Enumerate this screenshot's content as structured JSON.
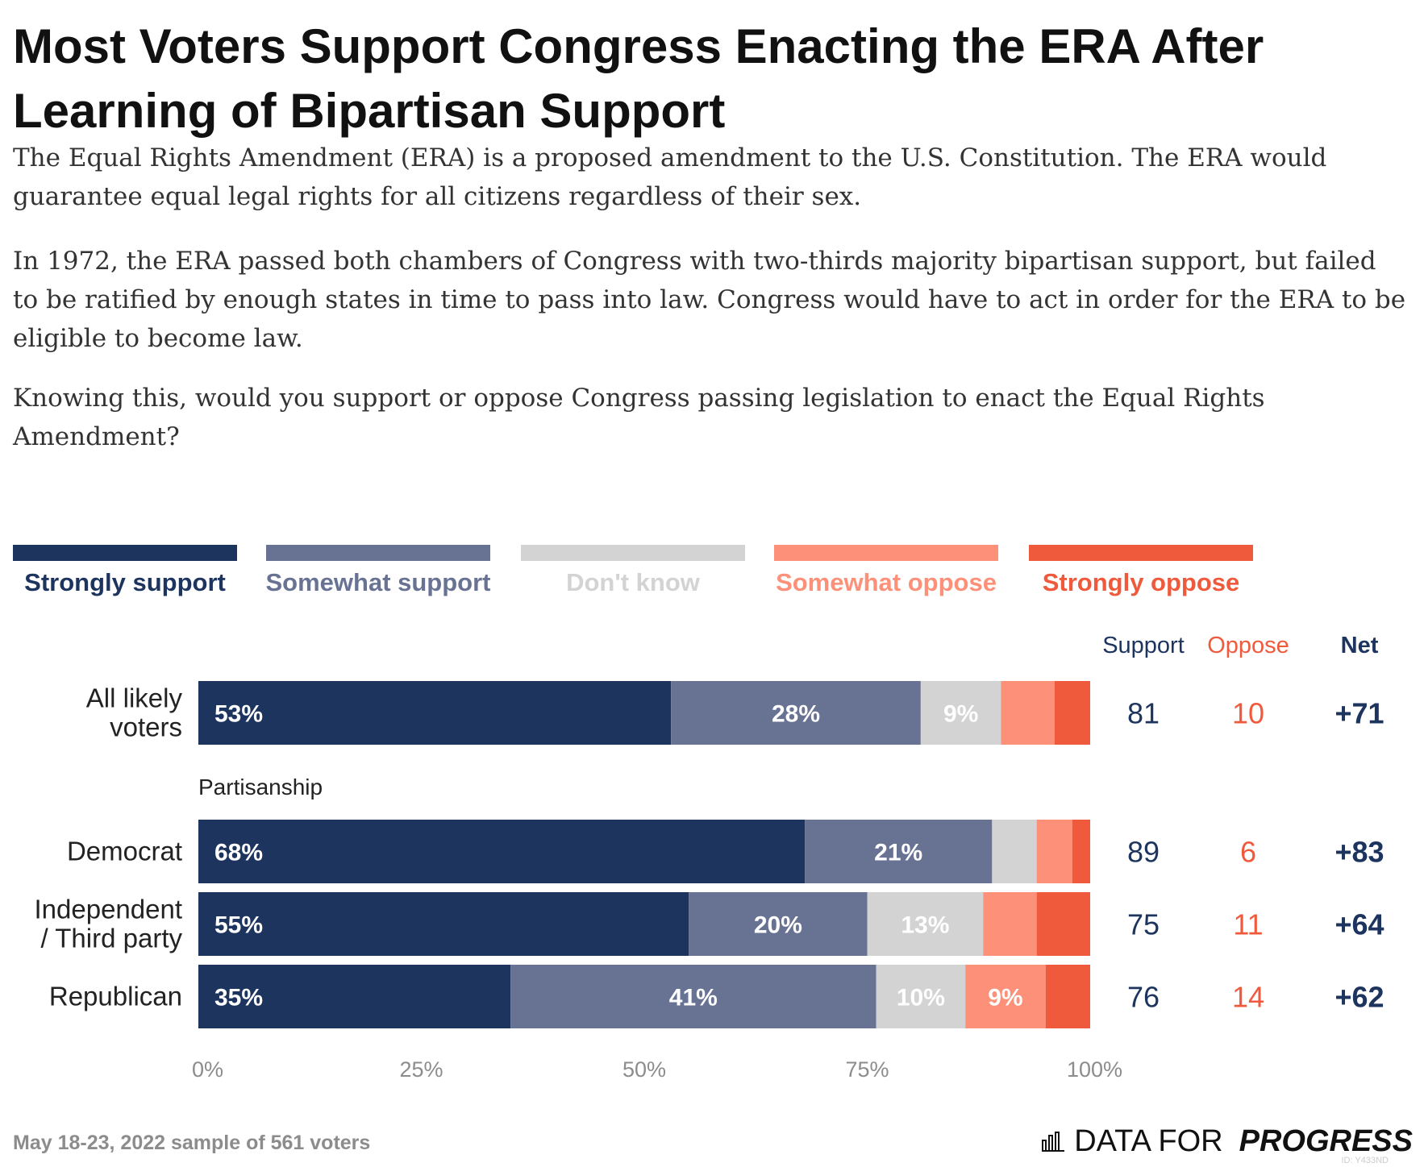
{
  "title": "Most Voters Support Congress Enacting the ERA After Learning of Bipartisan Support",
  "intro": [
    "The Equal Rights Amendment (ERA) is a proposed amendment to the U.S. Constitution. The ERA would guarantee equal legal rights for all citizens regardless of their sex.",
    "In 1972, the ERA passed both chambers of Congress with two-thirds majority bipartisan support, but failed to be ratified by enough states in time to pass into law. Congress would have to act in order for the ERA to be eligible to become law.",
    "Knowing this, would you support or oppose Congress passing legislation to enact the Equal Rights Amendment?"
  ],
  "colors": {
    "strongly_support": "#1d355e",
    "somewhat_support": "#687394",
    "dont_know": "#d3d3d3",
    "somewhat_oppose": "#fc9079",
    "strongly_oppose": "#f05a3c",
    "support_text": "#1d355e",
    "oppose_text": "#f05a3c"
  },
  "chart_data": {
    "type": "bar",
    "orientation": "horizontal",
    "stacked": true,
    "legend_position": "top",
    "xlim": [
      0,
      100
    ],
    "x_ticks": [
      "0%",
      "25%",
      "50%",
      "75%",
      "100%"
    ],
    "series": [
      {
        "name": "Strongly support",
        "values": [
          53,
          68,
          55,
          35
        ]
      },
      {
        "name": "Somewhat support",
        "values": [
          28,
          21,
          20,
          41
        ]
      },
      {
        "name": "Don't know",
        "values": [
          9,
          5,
          13,
          10
        ]
      },
      {
        "name": "Somewhat oppose",
        "values": [
          6,
          4,
          6,
          9
        ]
      },
      {
        "name": "Strongly oppose",
        "values": [
          4,
          2,
          6,
          5
        ]
      }
    ],
    "rows": [
      {
        "label": "All likely voters",
        "group": "",
        "labels": [
          "53%",
          "28%",
          "9%",
          "",
          ""
        ],
        "support": "81",
        "oppose": "10",
        "net": "+71"
      },
      {
        "label": "Democrat",
        "group": "Partisanship",
        "labels": [
          "68%",
          "21%",
          "",
          "",
          ""
        ],
        "support": "89",
        "oppose": "6",
        "net": "+83"
      },
      {
        "label": "Independent / Third party",
        "group": "Partisanship",
        "labels": [
          "55%",
          "20%",
          "13%",
          "",
          ""
        ],
        "support": "75",
        "oppose": "11",
        "net": "+64"
      },
      {
        "label": "Republican",
        "group": "Partisanship",
        "labels": [
          "35%",
          "41%",
          "10%",
          "9%",
          ""
        ],
        "support": "76",
        "oppose": "14",
        "net": "+62"
      }
    ],
    "group_label": "Partisanship",
    "summary_headers": {
      "support": "Support",
      "oppose": "Oppose",
      "net": "Net"
    }
  },
  "footer": {
    "note": "May 18-23, 2022 sample of 561 voters",
    "brand_part1": "DATA FOR",
    "brand_part2": "PROGRESS",
    "chart_id": "ID: Y433ND"
  }
}
